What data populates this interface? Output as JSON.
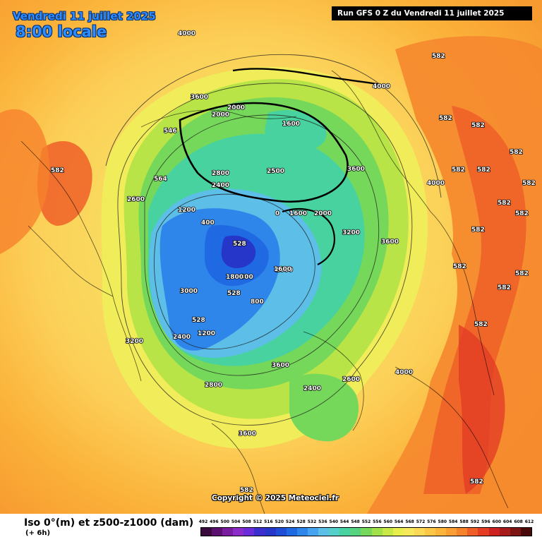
{
  "header": {
    "date_title": "Vendredi 11 juillet 2025",
    "time_title": "8:00 locale",
    "run_info": "Run GFS 0 Z du Vendredi 11 juillet 2025"
  },
  "map": {
    "copyright": "Copyright © 2025 Meteociel.fr",
    "iso_labels": [
      "4000",
      "3600",
      "2000",
      "1600",
      "2000",
      "2400",
      "2800",
      "1200",
      "400",
      "800",
      "0",
      "3200",
      "2600",
      "1800",
      "2500",
      "2000",
      "1600",
      "4000",
      "3600",
      "3000",
      "2400",
      "800",
      "1600",
      "1200",
      "2800",
      "3600",
      "4000",
      "4000",
      "3200",
      "2600",
      "3600",
      "1600",
      "2400",
      "3600"
    ],
    "geopotential_labels": [
      "582",
      "582",
      "582",
      "582",
      "582",
      "582",
      "582",
      "582",
      "582",
      "582",
      "582",
      "582",
      "582",
      "582",
      "582",
      "582",
      "582",
      "528",
      "528",
      "528",
      "546",
      "564"
    ]
  },
  "legend": {
    "title": "Iso 0°(m) et z500-z1000 (dam)",
    "subtitle": "(+ 6h)",
    "scale_values": [
      "492",
      "496",
      "500",
      "504",
      "508",
      "512",
      "516",
      "520",
      "524",
      "528",
      "532",
      "536",
      "540",
      "544",
      "548",
      "552",
      "556",
      "560",
      "564",
      "568",
      "572",
      "576",
      "580",
      "584",
      "588",
      "592",
      "596",
      "600",
      "604",
      "608",
      "612"
    ],
    "scale_colors": [
      "#3a0a3e",
      "#5b0f6e",
      "#7a1ca0",
      "#8b2bc8",
      "#6a2cd8",
      "#3b2fd0",
      "#2636c8",
      "#1e4ed6",
      "#1f6ae2",
      "#2f86ea",
      "#47a2ef",
      "#5dbfe8",
      "#55cfc9",
      "#47d2a0",
      "#55d37e",
      "#76d85b",
      "#a2e04a",
      "#c8e847",
      "#e8ee4b",
      "#f6e85a",
      "#fbd957",
      "#fcc746",
      "#fcb53a",
      "#fb9e33",
      "#f6822c",
      "#ee5f28",
      "#e43d24",
      "#cc2222",
      "#a81b1b",
      "#7d1414",
      "#4a0909"
    ]
  }
}
